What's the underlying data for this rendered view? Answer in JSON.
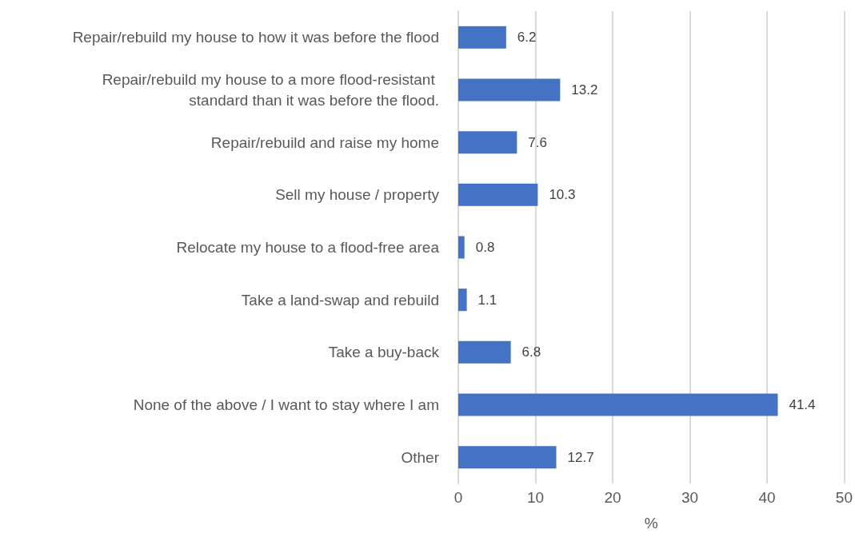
{
  "chart_data": {
    "type": "bar",
    "orientation": "horizontal",
    "xlabel": "%",
    "categories": [
      "Repair/rebuild my house to how it was before the flood",
      "Repair/rebuild my house to a more flood-resistant standard than it was before the flood.",
      "Repair/rebuild and raise my home",
      "Sell my house / property",
      "Relocate my house to a flood-free area",
      "Take a land-swap and rebuild",
      "Take a buy-back",
      "None of the above / I want to stay where I am",
      "Other"
    ],
    "values": [
      6.2,
      13.2,
      7.6,
      10.3,
      0.8,
      1.1,
      6.8,
      41.4,
      12.7
    ],
    "color": "#4472c4",
    "xlim": [
      0,
      50
    ],
    "xticks": [
      0,
      10,
      20,
      30,
      40,
      50
    ],
    "grid": "x",
    "data_labels": true
  }
}
